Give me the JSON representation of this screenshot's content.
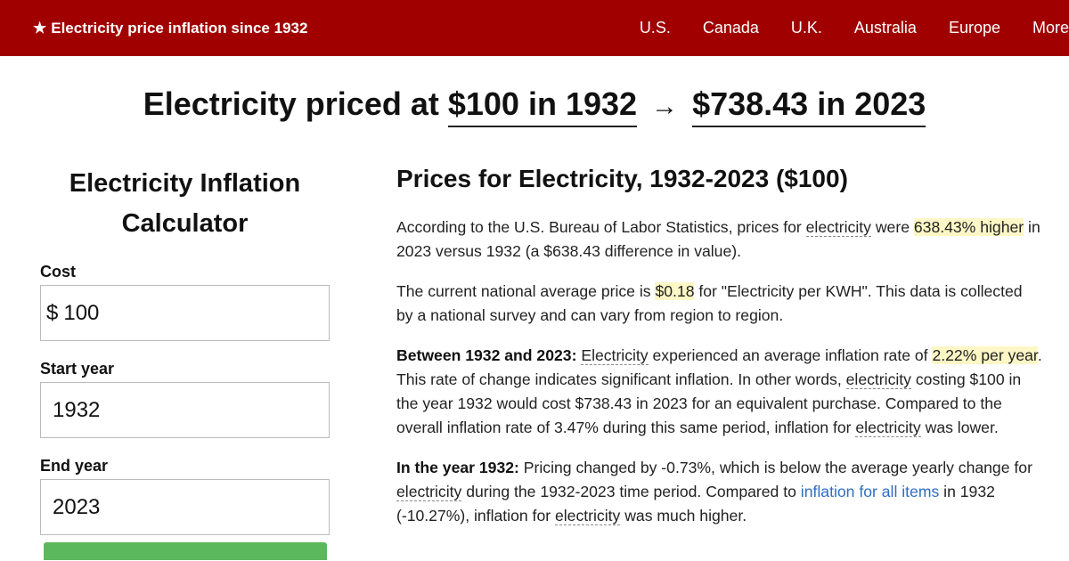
{
  "header": {
    "brand_star": "★",
    "brand_text": "Electricity price inflation since 1932",
    "nav": [
      "U.S.",
      "Canada",
      "U.K.",
      "Australia",
      "Europe",
      "More"
    ]
  },
  "headline": {
    "prefix": "Electricity priced at",
    "start": "$100 in 1932",
    "arrow": "→",
    "end": "$738.43 in 2023"
  },
  "calculator": {
    "title": "Electricity Inflation Calculator",
    "cost_label": "Cost",
    "currency": "$",
    "cost_value": "100",
    "start_label": "Start year",
    "start_value": "1932",
    "end_label": "End year",
    "end_value": "2023"
  },
  "article": {
    "title": "Prices for Electricity, 1932-2023 ($100)",
    "p1": {
      "a": "According to the U.S. Bureau of Labor Statistics, prices for ",
      "term": "electricity",
      "b": " were ",
      "highlight": "638.43% higher",
      "c": " in 2023 versus 1932 (a $638.43 difference in value)."
    },
    "p2": {
      "a": "The current national average price is ",
      "highlight": "$0.18",
      "b": " for \"Electricity per KWH\". This data is collected by a national survey and can vary from region to region."
    },
    "p3": {
      "lead": "Between 1932 and 2023:",
      "term1": "Electricity",
      "a": " experienced an average inflation rate of ",
      "highlight": "2.22% per year",
      "b": ". This rate of change indicates significant inflation. In other words, ",
      "term2": "electricity",
      "c": " costing $100 in the year 1932 would cost $738.43 in 2023 for an equivalent purchase. Compared to the overall inflation rate of 3.47% during this same period, inflation for ",
      "term3": "electricity",
      "d": " was lower."
    },
    "p4": {
      "lead": "In the year 1932:",
      "a": " Pricing changed by -0.73%, which is below the average yearly change for ",
      "term1": "electricity",
      "b": " during the 1932-2023 time period. Compared to ",
      "link": "inflation for all items",
      "c": " in 1932 (-10.27%), inflation for ",
      "term2": "electricity",
      "d": " was much higher."
    }
  }
}
